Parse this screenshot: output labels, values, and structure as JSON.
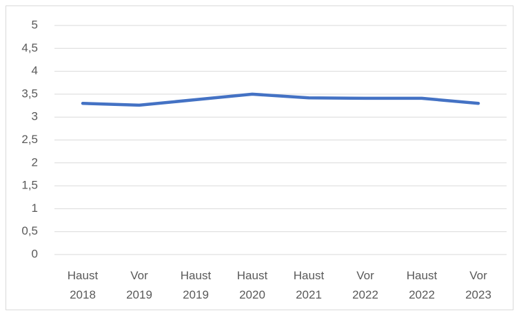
{
  "chart_data": {
    "type": "line",
    "categories": [
      "Haust 2018",
      "Vor 2019",
      "Haust 2019",
      "Haust 2020",
      "Haust 2021",
      "Vor 2022",
      "Haust 2022",
      "Vor 2023"
    ],
    "series": [
      {
        "color": "#4472c4",
        "values": [
          3.3,
          3.26,
          3.38,
          3.5,
          3.42,
          3.41,
          3.41,
          3.3
        ]
      }
    ],
    "ylim": [
      0,
      5
    ],
    "yticks": [
      0,
      {
        "value": 0.5,
        "label": "0,5"
      },
      1,
      {
        "value": 1.5,
        "label": "1,5"
      },
      2,
      {
        "value": 2.5,
        "label": "2,5"
      },
      3,
      {
        "value": 3.5,
        "label": "3,5"
      },
      4,
      {
        "value": 4.5,
        "label": "4,5"
      },
      5
    ],
    "grid": true
  }
}
